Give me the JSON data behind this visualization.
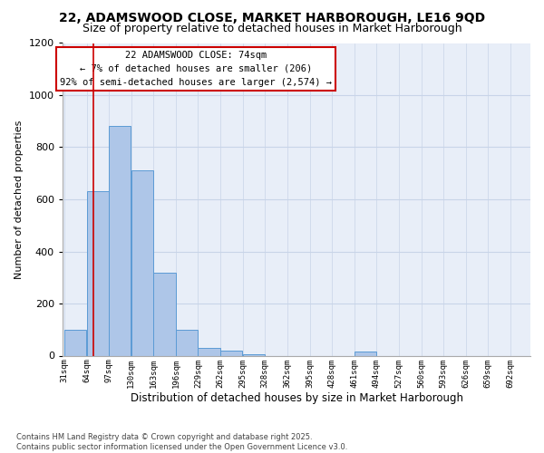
{
  "title_line1": "22, ADAMSWOOD CLOSE, MARKET HARBOROUGH, LE16 9QD",
  "title_line2": "Size of property relative to detached houses in Market Harborough",
  "xlabel": "Distribution of detached houses by size in Market Harborough",
  "ylabel": "Number of detached properties",
  "bins": [
    31,
    64,
    97,
    130,
    163,
    196,
    229,
    262,
    295,
    328,
    362,
    395,
    428,
    461,
    494,
    527,
    560,
    593,
    626,
    659,
    692
  ],
  "counts": [
    100,
    630,
    880,
    710,
    320,
    100,
    30,
    20,
    5,
    0,
    0,
    0,
    0,
    15,
    0,
    0,
    0,
    0,
    0,
    0
  ],
  "bar_color": "#aec6e8",
  "bar_edge_color": "#5b9bd5",
  "red_line_x": 74,
  "annotation_text": "22 ADAMSWOOD CLOSE: 74sqm\n← 7% of detached houses are smaller (206)\n92% of semi-detached houses are larger (2,574) →",
  "annotation_box_color": "#ffffff",
  "annotation_box_edge": "#cc0000",
  "red_line_color": "#cc0000",
  "ylim": [
    0,
    1200
  ],
  "yticks": [
    0,
    200,
    400,
    600,
    800,
    1000,
    1200
  ],
  "grid_color": "#c8d4e8",
  "bg_color": "#e8eef8",
  "footnote": "Contains HM Land Registry data © Crown copyright and database right 2025.\nContains public sector information licensed under the Open Government Licence v3.0.",
  "title_fontsize": 10,
  "subtitle_fontsize": 9,
  "annotation_fontsize": 7.5,
  "ylabel_fontsize": 8,
  "xlabel_fontsize": 8.5,
  "ytick_fontsize": 8,
  "xtick_fontsize": 6.5,
  "footnote_fontsize": 6
}
